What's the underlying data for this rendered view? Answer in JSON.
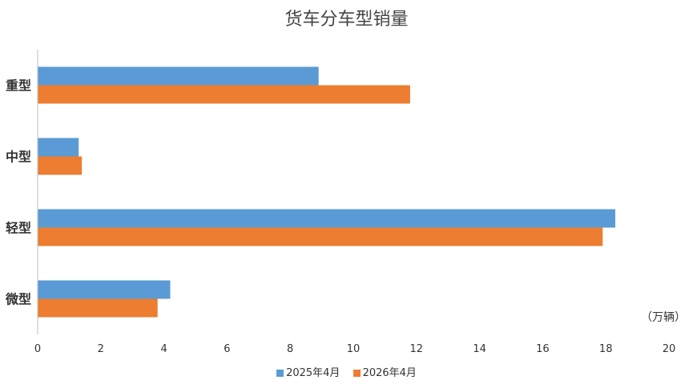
{
  "chart_data": {
    "type": "bar",
    "orientation": "horizontal",
    "title": "货车分车型销量",
    "unit_label": "（万辆）",
    "categories": [
      "重型",
      "中型",
      "轻型",
      "微型"
    ],
    "series": [
      {
        "name": "2025年4月",
        "color": "#5b9bd5",
        "values": [
          8.9,
          1.3,
          18.3,
          4.2
        ]
      },
      {
        "name": "2026年4月",
        "color": "#ed7d31",
        "values": [
          11.8,
          1.4,
          17.9,
          3.8
        ]
      }
    ],
    "xlim": [
      0,
      20
    ],
    "xticks": [
      0,
      2,
      4,
      6,
      8,
      10,
      12,
      14,
      16,
      18,
      20
    ],
    "legend_position": "bottom",
    "grid": false
  }
}
